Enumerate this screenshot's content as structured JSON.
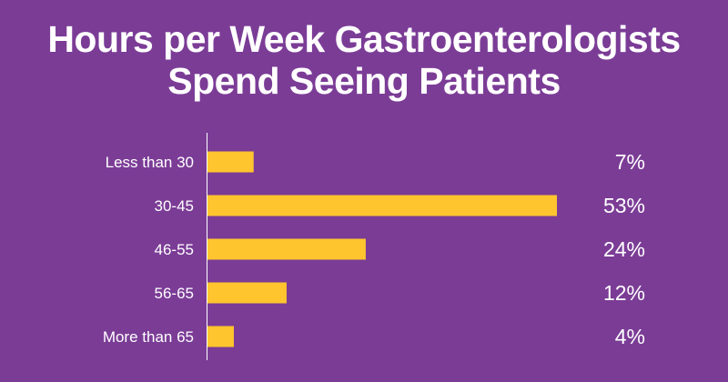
{
  "chart_data": {
    "type": "bar",
    "orientation": "horizontal",
    "title": [
      "Hours per Week Gastroenterologists",
      "Spend Seeing Patients"
    ],
    "categories": [
      "Less than 30",
      "30-45",
      "46-55",
      "56-65",
      "More than 65"
    ],
    "values": [
      7,
      53,
      24,
      12,
      4
    ],
    "value_labels": [
      "7%",
      "53%",
      "24%",
      "12%",
      "4%"
    ],
    "xlim": [
      0,
      53
    ],
    "grid": false,
    "colors": {
      "background": "#7b3c96",
      "bar": "#fec52e",
      "axis": "#ffffff",
      "text": "#ffffff"
    }
  }
}
